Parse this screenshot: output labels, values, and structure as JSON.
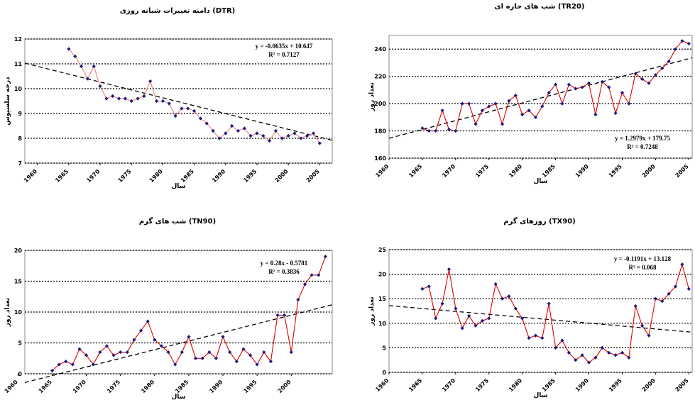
{
  "chart_data": [
    {
      "type": "line",
      "title": "دامنه تغییرات شبانه روزی (DTR)",
      "xlabel": "سال",
      "ylabel": "درجه سلسیوس",
      "x": [
        1965,
        1966,
        1967,
        1968,
        1969,
        1970,
        1971,
        1972,
        1973,
        1974,
        1975,
        1976,
        1977,
        1978,
        1979,
        1980,
        1981,
        1982,
        1983,
        1984,
        1985,
        1986,
        1987,
        1988,
        1989,
        1990,
        1991,
        1992,
        1993,
        1994,
        1995,
        1996,
        1997,
        1998,
        1999,
        2000,
        2001,
        2002,
        2003,
        2004,
        2005
      ],
      "series": [
        {
          "name": "DTR",
          "color": "#f08080",
          "marker": "#1a1a80",
          "values": [
            11.6,
            11.3,
            10.9,
            10.4,
            10.9,
            10.1,
            9.6,
            9.7,
            9.6,
            9.6,
            9.5,
            9.6,
            9.7,
            10.3,
            9.5,
            9.5,
            9.4,
            8.9,
            9.2,
            9.2,
            9.1,
            8.8,
            8.6,
            8.3,
            8.0,
            8.2,
            8.5,
            8.3,
            8.4,
            8.1,
            8.2,
            8.1,
            7.9,
            8.3,
            8.0,
            8.1,
            8.2,
            8.0,
            8.1,
            8.2,
            7.8
          ]
        }
      ],
      "trend": {
        "slope": -0.0635,
        "intercept": 10.647
      },
      "equation": "y = -0.0635x + 10.647",
      "r2": "R² = 0.7127",
      "xlim": [
        1958,
        2007
      ],
      "xticks": [
        1960,
        1965,
        1970,
        1975,
        1980,
        1985,
        1990,
        1995,
        2000,
        2005
      ],
      "ylim": [
        7,
        12
      ],
      "yticks": [
        7,
        8,
        9,
        10,
        11,
        12
      ],
      "grid": true
    },
    {
      "type": "line",
      "title": "شب های حاره ای (TR20)",
      "xlabel": "سال",
      "ylabel": "تعداد روز",
      "x": [
        1965,
        1966,
        1967,
        1968,
        1969,
        1970,
        1971,
        1972,
        1973,
        1974,
        1975,
        1976,
        1977,
        1978,
        1979,
        1980,
        1981,
        1982,
        1983,
        1984,
        1985,
        1986,
        1987,
        1988,
        1989,
        1990,
        1991,
        1992,
        1993,
        1994,
        1995,
        1996,
        1997,
        1998,
        1999,
        2000,
        2001,
        2002,
        2003,
        2004,
        2005
      ],
      "series": [
        {
          "name": "TR20",
          "color": "#e00000",
          "marker": "#1a1a80",
          "values": [
            182,
            180,
            180,
            195,
            181,
            180,
            200,
            200,
            185,
            195,
            198,
            200,
            185,
            202,
            206,
            192,
            195,
            190,
            198,
            208,
            214,
            200,
            214,
            211,
            212,
            215,
            192,
            216,
            212,
            193,
            208,
            200,
            222,
            218,
            215,
            221,
            226,
            231,
            240,
            246,
            244
          ]
        }
      ],
      "trend": {
        "slope": 1.2979,
        "intercept": 179.75
      },
      "equation": "y = 1.2979x + 179.75",
      "r2": "R² = 0.7248",
      "xlim": [
        1960,
        2005.5
      ],
      "xticks": [
        1960,
        1965,
        1970,
        1975,
        1980,
        1985,
        1990,
        1995,
        2000,
        2005
      ],
      "ylim": [
        160,
        250
      ],
      "yticks": [
        160,
        180,
        200,
        220,
        240
      ],
      "grid": true
    },
    {
      "type": "line",
      "title": "شب های گرم (TN90)",
      "xlabel": "سال",
      "ylabel": "تعداد روز",
      "x": [
        1965,
        1966,
        1967,
        1968,
        1969,
        1970,
        1971,
        1972,
        1973,
        1974,
        1975,
        1976,
        1977,
        1978,
        1979,
        1980,
        1981,
        1982,
        1983,
        1984,
        1985,
        1986,
        1987,
        1988,
        1989,
        1990,
        1991,
        1992,
        1993,
        1994,
        1995,
        1996,
        1997,
        1998,
        1999,
        2000,
        2001,
        2002,
        2003,
        2004,
        2005
      ],
      "series": [
        {
          "name": "TN90",
          "color": "#e00000",
          "marker": "#1a1a80",
          "values": [
            0.5,
            1.5,
            2,
            1.5,
            4,
            3,
            1.5,
            3.5,
            4.5,
            3,
            3.5,
            3.5,
            5.5,
            7,
            8.5,
            5.5,
            4.5,
            3.5,
            1.5,
            3.5,
            6,
            2.5,
            2.5,
            3.5,
            2.5,
            6,
            3.5,
            2,
            4,
            3,
            1.5,
            3.5,
            2,
            9.5,
            9.5,
            3.5,
            12,
            14.5,
            16,
            16,
            19
          ]
        }
      ],
      "trend": {
        "slope": 0.28,
        "intercept": -0.5781
      },
      "equation": "y = 0.28x - 0.5781",
      "r2": "R² = 0.3836",
      "xlim": [
        1961,
        2006
      ],
      "xticks": [
        1960,
        1965,
        1970,
        1975,
        1980,
        1985,
        1990,
        1995,
        2000
      ],
      "ylim": [
        0,
        20
      ],
      "yticks": [
        0,
        5,
        10,
        15,
        20
      ],
      "grid": true
    },
    {
      "type": "line",
      "title": "روزهای گرم (TX90)",
      "xlabel": "سال",
      "ylabel": "تعداد روز",
      "x": [
        1965,
        1966,
        1967,
        1968,
        1969,
        1970,
        1971,
        1972,
        1973,
        1974,
        1975,
        1976,
        1977,
        1978,
        1979,
        1980,
        1981,
        1982,
        1983,
        1984,
        1985,
        1986,
        1987,
        1988,
        1989,
        1990,
        1991,
        1992,
        1993,
        1994,
        1995,
        1996,
        1997,
        1998,
        1999,
        2000,
        2001,
        2002,
        2003,
        2004,
        2005
      ],
      "series": [
        {
          "name": "TX90",
          "color": "#e00000",
          "marker": "#1a1a80",
          "values": [
            17,
            17.5,
            11,
            14,
            21,
            13,
            9,
            11.5,
            9.5,
            10.5,
            11,
            18,
            15,
            15.5,
            13,
            11,
            7,
            7.5,
            7,
            14,
            5,
            6.5,
            4,
            2.5,
            3.5,
            2,
            3,
            5,
            4,
            3.5,
            4,
            3,
            13.5,
            9.5,
            7.5,
            15,
            14.5,
            16,
            17.5,
            22,
            17
          ]
        }
      ],
      "trend": {
        "slope": -0.1191,
        "intercept": 13.128
      },
      "equation": "y = -0.1191x + 13.128",
      "r2": "R² = 0.068",
      "xlim": [
        1960,
        2005.5
      ],
      "xticks": [
        1960,
        1965,
        1970,
        1975,
        1980,
        1985,
        1990,
        1995,
        2000,
        2005
      ],
      "ylim": [
        0,
        25
      ],
      "yticks": [
        0,
        5,
        10,
        15,
        20,
        25
      ],
      "grid": true
    }
  ]
}
